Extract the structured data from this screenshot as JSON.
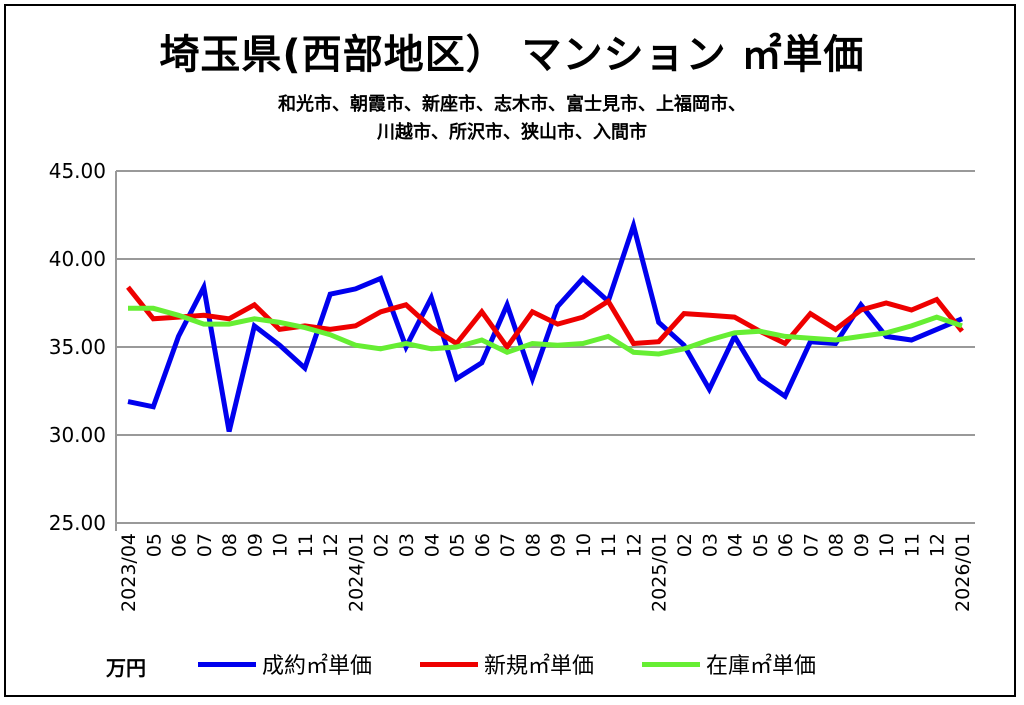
{
  "chart_data": {
    "type": "line",
    "title": "埼玉県(西部地区） マンション ㎡単価",
    "subtitle_lines": [
      "和光市、朝霞市、新座市、志木市、富士見市、上福岡市、",
      "川越市、所沢市、狭山市、入間市"
    ],
    "ylabel": "万円",
    "ylim": [
      25,
      45
    ],
    "yticks": [
      "25.00",
      "30.00",
      "35.00",
      "40.00",
      "45.00"
    ],
    "grid": true,
    "legend_position": "bottom",
    "categories": [
      "2023/04",
      "05",
      "06",
      "07",
      "08",
      "09",
      "10",
      "11",
      "12",
      "2024/01",
      "02",
      "03",
      "04",
      "05",
      "06",
      "07",
      "08",
      "09",
      "10",
      "11",
      "12",
      "2025/01",
      "02",
      "03",
      "04",
      "05",
      "06",
      "07",
      "08",
      "09",
      "10",
      "11",
      "12",
      "2026/01"
    ],
    "series": [
      {
        "name": "成約㎡単価",
        "color": "#0000ee",
        "values": [
          31.9,
          31.6,
          35.6,
          38.4,
          30.2,
          36.2,
          35.1,
          33.8,
          38.0,
          38.3,
          38.9,
          35.0,
          37.8,
          33.2,
          34.1,
          37.4,
          33.2,
          37.3,
          38.9,
          37.6,
          41.9,
          36.4,
          35.1,
          32.6,
          35.6,
          33.2,
          32.2,
          35.3,
          35.2,
          37.4,
          35.6,
          35.4,
          36.0,
          36.6
        ]
      },
      {
        "name": "新規㎡単価",
        "color": "#ee0000",
        "values": [
          38.4,
          36.6,
          36.7,
          36.8,
          36.6,
          37.4,
          36.0,
          36.2,
          36.0,
          36.2,
          37.0,
          37.4,
          36.1,
          35.2,
          37.0,
          35.0,
          37.0,
          36.3,
          36.7,
          37.6,
          35.2,
          35.3,
          36.9,
          36.8,
          36.7,
          35.9,
          35.2,
          36.9,
          36.0,
          37.1,
          37.5,
          37.1,
          37.7,
          35.9
        ]
      },
      {
        "name": "在庫㎡単価",
        "color": "#66ee33",
        "values": [
          37.2,
          37.2,
          36.8,
          36.3,
          36.3,
          36.6,
          36.4,
          36.1,
          35.7,
          35.1,
          34.9,
          35.2,
          34.9,
          35.0,
          35.4,
          34.7,
          35.2,
          35.1,
          35.2,
          35.6,
          34.7,
          34.6,
          34.9,
          35.4,
          35.8,
          35.9,
          35.6,
          35.5,
          35.4,
          35.6,
          35.8,
          36.2,
          36.7,
          36.2
        ]
      }
    ]
  }
}
